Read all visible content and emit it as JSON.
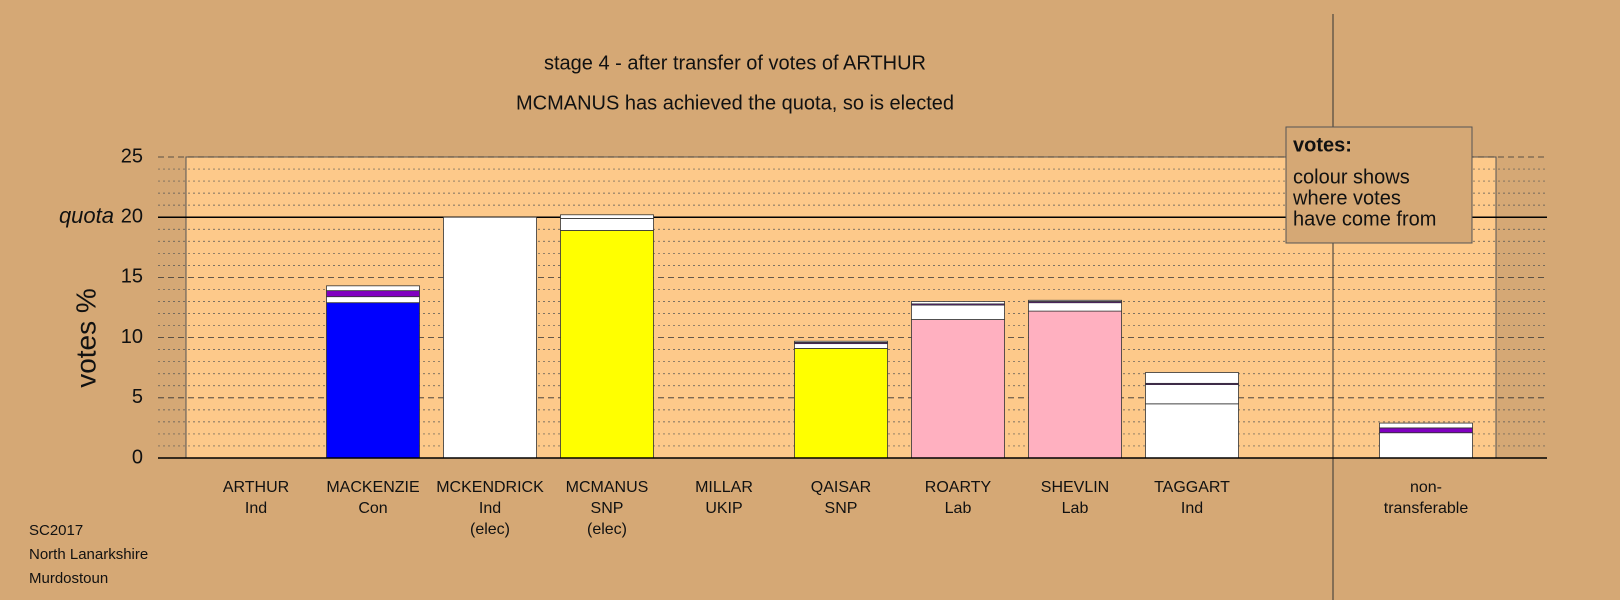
{
  "chart_data": {
    "type": "stacked_bar",
    "title": "stage 4 - after transfer of votes of ARTHUR",
    "subtitle": "MCMANUS has achieved the quota, so is elected",
    "y_label": "votes %",
    "categories": [
      [
        "ARTHUR",
        "Ind"
      ],
      [
        "MACKENZIE",
        "Con"
      ],
      [
        "MCKENDRICK",
        "Ind",
        "(elec)"
      ],
      [
        "MCMANUS",
        "SNP",
        "(elec)"
      ],
      [
        "MILLAR",
        "UKIP"
      ],
      [
        "QAISAR",
        "SNP"
      ],
      [
        "ROARTY",
        "Lab"
      ],
      [
        "SHEVLIN",
        "Lab"
      ],
      [
        "TAGGART",
        "Ind"
      ],
      [
        "non-",
        "transferable"
      ]
    ],
    "series": [
      {
        "colors": [
          "#ffffff",
          "#0000ff",
          "#ffffff",
          "#ffff00",
          "#ffffff",
          "#ffff00",
          "#ffb0c0",
          "#ffb0c0",
          "#ffffff",
          "#ffffff"
        ],
        "values": [
          0,
          12.9,
          20.0,
          18.9,
          0,
          9.1,
          11.5,
          12.2,
          4.5,
          0
        ]
      },
      {
        "color": "#ffffff",
        "values": [
          0,
          0.5,
          0,
          1.0,
          0,
          0.4,
          1.2,
          0.7,
          1.6,
          2.1
        ]
      },
      {
        "color": "#8000c0",
        "values": [
          0,
          0.5,
          0,
          0,
          0,
          0.1,
          0.1,
          0.1,
          0.1,
          0.4
        ]
      },
      {
        "color": "#ffffff",
        "values": [
          0,
          0.4,
          0,
          0.3,
          0,
          0.1,
          0.2,
          0.1,
          0.9,
          0.4
        ]
      }
    ],
    "ylim": [
      0,
      25
    ],
    "yticks": [
      0,
      5,
      10,
      15,
      20,
      25
    ],
    "minor_yticks": [
      1,
      2,
      3,
      4,
      6,
      7,
      8,
      9,
      11,
      12,
      13,
      14,
      16,
      17,
      18,
      19,
      21,
      22,
      23,
      24
    ],
    "quota": {
      "value": 20,
      "label": "quota"
    },
    "legend": {
      "title": "votes:",
      "lines": [
        "colour shows",
        "where votes",
        "have come from"
      ]
    },
    "footer": [
      "SC2017",
      "North Lanarkshire",
      "Murdostoun"
    ]
  }
}
